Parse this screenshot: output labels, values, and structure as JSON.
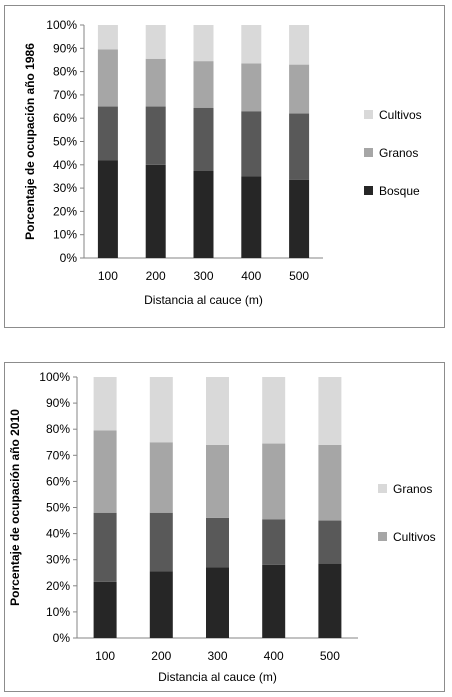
{
  "chart_data": [
    {
      "type": "bar",
      "stacked": true,
      "categories": [
        "100",
        "200",
        "300",
        "400",
        "500"
      ],
      "xlabel": "Distancia al cauce (m)",
      "ylabel": "Porcentaje de ocupación año 1986",
      "ylim": [
        0,
        100
      ],
      "yticks": [
        "0%",
        "10%",
        "20%",
        "30%",
        "40%",
        "50%",
        "60%",
        "70%",
        "80%",
        "90%",
        "100%"
      ],
      "grid": false,
      "legend_position": "right",
      "series": [
        {
          "name": "Bosque",
          "color": "#262626",
          "values": [
            42,
            40,
            37.5,
            35,
            33.5
          ]
        },
        {
          "name": "",
          "color": "#595959",
          "values": [
            23,
            25,
            27,
            28,
            28.5
          ]
        },
        {
          "name": "Granos",
          "color": "#a6a6a6",
          "values": [
            24.5,
            20.5,
            20,
            20.5,
            21
          ]
        },
        {
          "name": "Cultivos",
          "color": "#d9d9d9",
          "values": [
            10.5,
            14.5,
            15.5,
            16.5,
            17
          ]
        }
      ],
      "legend": [
        {
          "label": "Cultivos",
          "color": "#d9d9d9"
        },
        {
          "label": "Granos",
          "color": "#a6a6a6"
        },
        {
          "label": "Bosque",
          "color": "#262626"
        }
      ]
    },
    {
      "type": "bar",
      "stacked": true,
      "categories": [
        "100",
        "200",
        "300",
        "400",
        "500"
      ],
      "xlabel": "Distancia al cauce (m)",
      "ylabel": "Porcentaje de ocupación año 2010",
      "ylim": [
        0,
        100
      ],
      "yticks": [
        "0%",
        "10%",
        "20%",
        "30%",
        "40%",
        "50%",
        "60%",
        "70%",
        "80%",
        "90%",
        "100%"
      ],
      "grid": false,
      "legend_position": "right",
      "series": [
        {
          "name": "",
          "color": "#262626",
          "values": [
            21.5,
            25.5,
            27,
            28,
            28.5
          ]
        },
        {
          "name": "",
          "color": "#595959",
          "values": [
            26.5,
            22.5,
            19,
            17.5,
            16.5
          ]
        },
        {
          "name": "Cultivos",
          "color": "#a6a6a6",
          "values": [
            31.5,
            27,
            28,
            29,
            29
          ]
        },
        {
          "name": "Granos",
          "color": "#d9d9d9",
          "values": [
            20.5,
            25,
            26,
            25.5,
            26
          ]
        }
      ],
      "legend": [
        {
          "label": "Granos",
          "color": "#d9d9d9"
        },
        {
          "label": "Cultivos",
          "color": "#a6a6a6"
        }
      ]
    }
  ]
}
